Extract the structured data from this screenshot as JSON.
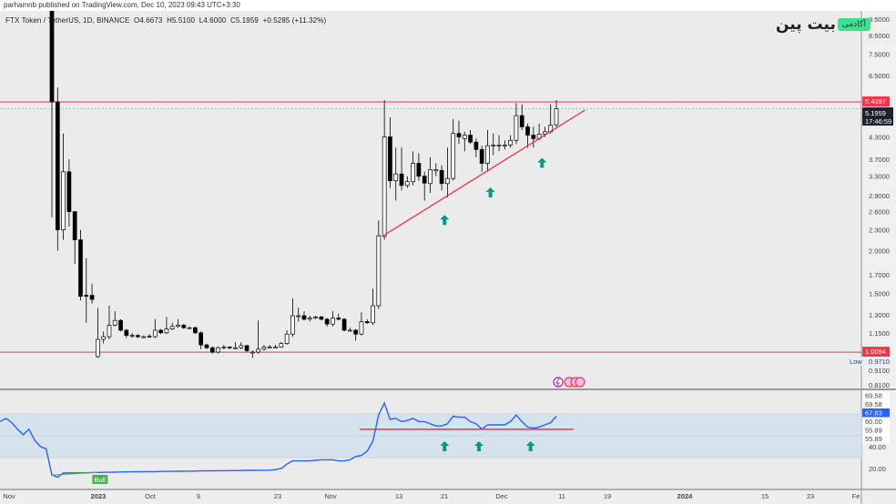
{
  "header": {
    "published": "parhamnb published on TradingView.com, Dec 10, 2023 09:43 UTC+3:30"
  },
  "legend": {
    "symbol": "FTX Token / TetherUS, 1D, BINANCE",
    "open": "O4.6673",
    "high": "H5.5100",
    "low": "L4.6000",
    "close": "C5.1959",
    "change": "+0.5285 (+11.32%)"
  },
  "logo": {
    "word": "بیت پین",
    "badge": "آکادمی"
  },
  "colors": {
    "bg": "#ebebeb",
    "red": "#f23645",
    "rsi": "#2962ff",
    "band": "#d6e2ec",
    "arrow": "#089981",
    "bull": "#4caf50",
    "dark": "#1e222d"
  },
  "chart_data": {
    "type": "candlestick",
    "title": "FTX Token / TetherUS, 1D, BINANCE",
    "yscale": "log",
    "ylim": [
      0.78,
      9.8
    ],
    "price_ticks": [
      "9.5000",
      "8.5000",
      "7.5000",
      "6.5000",
      "4.3000",
      "3.7000",
      "3.3000",
      "2.9000",
      "2.6000",
      "2.3000",
      "2.0000",
      "1.7000",
      "1.5000",
      "1.3000",
      "1.1500",
      "0.9100",
      "0.8100"
    ],
    "time_ticks": [
      "Nov",
      "2023",
      "Oct",
      "9",
      "23",
      "Nov",
      "13",
      "21",
      "Dec",
      "11",
      "19",
      "2024",
      "15",
      "23",
      "Fe"
    ],
    "ohlc": [
      [
        10.5,
        11.5,
        2.5,
        5.44
      ],
      [
        5.44,
        6.0,
        2.0,
        2.3
      ],
      [
        2.3,
        4.4,
        2.15,
        3.4
      ],
      [
        3.4,
        3.7,
        2.35,
        2.6
      ],
      [
        2.6,
        2.6,
        1.83,
        2.15
      ],
      [
        2.15,
        2.3,
        1.43,
        1.47
      ],
      [
        1.48,
        1.9,
        1.23,
        1.47
      ],
      [
        1.48,
        1.6,
        1.4,
        1.44
      ],
      [
        0.98,
        1.36,
        0.97,
        1.1
      ],
      [
        1.1,
        1.16,
        1.07,
        1.12
      ],
      [
        1.12,
        1.38,
        1.1,
        1.21
      ],
      [
        1.21,
        1.33,
        1.2,
        1.25
      ],
      [
        1.25,
        1.26,
        1.16,
        1.17
      ],
      [
        1.17,
        1.18,
        1.11,
        1.13
      ],
      [
        1.13,
        1.15,
        1.11,
        1.13
      ],
      [
        1.13,
        1.14,
        1.11,
        1.12
      ],
      [
        1.12,
        1.13,
        1.11,
        1.12
      ],
      [
        1.12,
        1.14,
        1.11,
        1.125
      ],
      [
        1.12,
        1.26,
        1.11,
        1.17
      ],
      [
        1.17,
        1.18,
        1.14,
        1.15
      ],
      [
        1.15,
        1.28,
        1.14,
        1.18
      ],
      [
        1.18,
        1.23,
        1.17,
        1.2
      ],
      [
        1.2,
        1.26,
        1.19,
        1.21
      ],
      [
        1.21,
        1.22,
        1.18,
        1.19
      ],
      [
        1.19,
        1.2,
        1.18,
        1.19
      ],
      [
        1.19,
        1.2,
        1.14,
        1.15
      ],
      [
        1.15,
        1.16,
        1.03,
        1.06
      ],
      [
        1.06,
        1.07,
        1.03,
        1.04
      ],
      [
        1.04,
        1.05,
        1.0,
        1.01
      ],
      [
        1.01,
        1.05,
        1.0,
        1.04
      ],
      [
        1.04,
        1.06,
        1.03,
        1.045
      ],
      [
        1.045,
        1.05,
        1.03,
        1.04
      ],
      [
        1.04,
        1.08,
        1.03,
        1.04
      ],
      [
        1.04,
        1.08,
        1.03,
        1.055
      ],
      [
        1.055,
        1.06,
        1.01,
        1.02
      ],
      [
        1.01,
        1.02,
        0.971,
        1.01
      ],
      [
        1.01,
        1.25,
        1.0,
        1.03
      ],
      [
        1.03,
        1.06,
        1.02,
        1.045
      ],
      [
        1.045,
        1.06,
        1.04,
        1.045
      ],
      [
        1.045,
        1.06,
        1.04,
        1.045
      ],
      [
        1.045,
        1.08,
        1.04,
        1.07
      ],
      [
        1.07,
        1.17,
        1.06,
        1.14
      ],
      [
        1.14,
        1.45,
        1.12,
        1.29
      ],
      [
        1.29,
        1.36,
        1.24,
        1.29
      ],
      [
        1.29,
        1.33,
        1.25,
        1.26
      ],
      [
        1.26,
        1.29,
        1.24,
        1.27
      ],
      [
        1.27,
        1.29,
        1.26,
        1.28
      ],
      [
        1.28,
        1.29,
        1.25,
        1.26
      ],
      [
        1.26,
        1.27,
        1.2,
        1.22
      ],
      [
        1.22,
        1.33,
        1.2,
        1.27
      ],
      [
        1.27,
        1.31,
        1.25,
        1.26
      ],
      [
        1.26,
        1.27,
        1.16,
        1.17
      ],
      [
        1.17,
        1.19,
        1.16,
        1.17
      ],
      [
        1.17,
        1.18,
        1.09,
        1.14
      ],
      [
        1.14,
        1.32,
        1.13,
        1.24
      ],
      [
        1.24,
        1.26,
        1.22,
        1.23
      ],
      [
        1.23,
        1.55,
        1.21,
        1.38
      ],
      [
        1.38,
        2.45,
        1.35,
        2.21
      ],
      [
        2.2,
        5.5,
        2.15,
        4.3
      ],
      [
        4.3,
        4.9,
        3.05,
        3.2
      ],
      [
        3.2,
        4.0,
        2.8,
        3.35
      ],
      [
        3.35,
        4.0,
        3.0,
        3.1
      ],
      [
        3.1,
        3.3,
        3.05,
        3.18
      ],
      [
        3.18,
        3.9,
        3.1,
        3.6
      ],
      [
        3.6,
        3.85,
        3.2,
        3.3
      ],
      [
        3.3,
        3.4,
        2.8,
        3.15
      ],
      [
        3.14,
        3.75,
        2.95,
        3.45
      ],
      [
        3.42,
        3.6,
        3.3,
        3.45
      ],
      [
        3.43,
        3.55,
        3.0,
        3.14
      ],
      [
        3.14,
        4.0,
        2.86,
        3.25
      ],
      [
        3.25,
        4.85,
        3.2,
        4.4
      ],
      [
        4.4,
        4.8,
        4.1,
        4.3
      ],
      [
        4.25,
        4.45,
        3.9,
        4.35
      ],
      [
        4.35,
        4.5,
        4.1,
        4.15
      ],
      [
        4.15,
        4.25,
        3.75,
        3.95
      ],
      [
        3.95,
        4.05,
        3.4,
        3.6
      ],
      [
        3.6,
        4.5,
        3.4,
        4.05
      ],
      [
        4.05,
        4.4,
        3.8,
        4.07
      ],
      [
        4.07,
        4.35,
        3.9,
        4.07
      ],
      [
        4.07,
        4.2,
        3.95,
        4.07
      ],
      [
        4.07,
        4.35,
        4.0,
        4.2
      ],
      [
        4.2,
        5.4,
        4.1,
        4.96
      ],
      [
        4.96,
        5.35,
        4.5,
        4.6
      ],
      [
        4.6,
        4.7,
        4.0,
        4.35
      ],
      [
        4.35,
        4.6,
        4.0,
        4.25
      ],
      [
        4.25,
        4.7,
        4.2,
        4.38
      ],
      [
        4.38,
        4.6,
        4.3,
        4.45
      ],
      [
        4.45,
        5.35,
        4.4,
        4.65
      ],
      [
        4.6673,
        5.51,
        4.6,
        5.1959
      ]
    ],
    "levels": {
      "resistance": 5.4397,
      "support": 1.0094,
      "last": 5.1959
    },
    "badges": {
      "resistance": "5.4397",
      "last": "5.1959",
      "countdown": "17:46:59",
      "support": "1.0094",
      "low_label": "Low",
      "low_value": "0.9710"
    },
    "trendline": {
      "from": [
        57.6,
        2.2
      ],
      "to": [
        93,
        5.15
      ]
    },
    "arrows_price": [
      [
        68.5,
        2.45
      ],
      [
        76.5,
        2.95
      ],
      [
        85.5,
        3.6
      ]
    ],
    "rsi": {
      "start_index": -9,
      "values": [
        63,
        66,
        62,
        56,
        51,
        56,
        46,
        40,
        38,
        14,
        12,
        16,
        16,
        16,
        16,
        16.2,
        16.3,
        16.4,
        16.5,
        16.6,
        16.7,
        16.8,
        16.9,
        17,
        17,
        17.1,
        17.2,
        17.2,
        17.3,
        17.4,
        17.4,
        17.5,
        17.6,
        17.6,
        17.7,
        17.8,
        17.8,
        17.9,
        18,
        18,
        18.1,
        18.2,
        18.2,
        18.3,
        18.3,
        18.4,
        18.4,
        18.5,
        19,
        20,
        24,
        27,
        27,
        27,
        27,
        27.5,
        28,
        28,
        28,
        27,
        27,
        28,
        31,
        32,
        36,
        45,
        69,
        80,
        65,
        66,
        63,
        64,
        66,
        63,
        63,
        61,
        59,
        59,
        61,
        68,
        67,
        67,
        63,
        61,
        56,
        60,
        60,
        60,
        60,
        63,
        69,
        63,
        58,
        57,
        58,
        60,
        62,
        67.83
      ],
      "band": [
        30,
        70
      ],
      "hline": 55.89,
      "ticks": [
        "40.00",
        "20.00"
      ],
      "badges": [
        "69.58",
        "69.58",
        "67.83",
        "60.00",
        "55.89",
        "55.89"
      ],
      "bull_label": "Bull",
      "divergence": [
        [
          0,
          14
        ],
        [
          8,
          16.5
        ]
      ],
      "arrows_index": [
        68.5,
        74.5,
        83.5
      ]
    }
  }
}
